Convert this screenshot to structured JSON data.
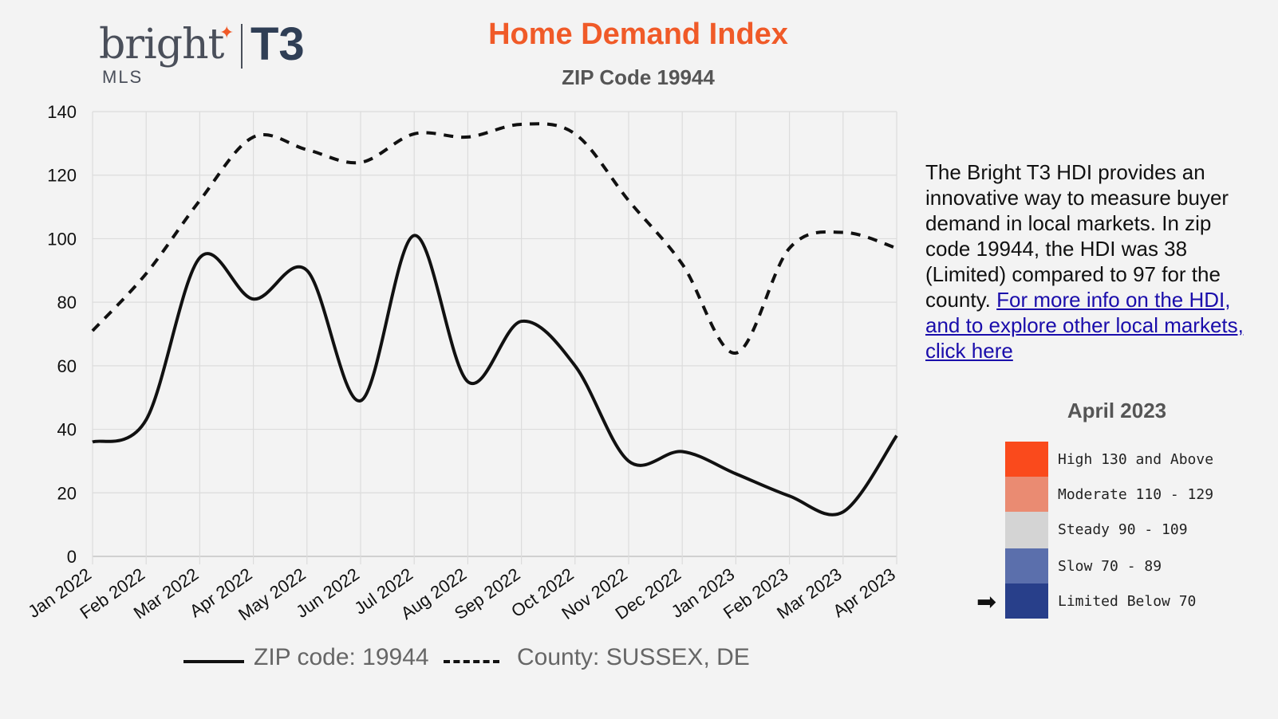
{
  "header": {
    "logo_text": "bright",
    "logo_mls": "MLS",
    "logo_t3": "T3",
    "title": "Home Demand Index",
    "subtitle": "ZIP Code 19944"
  },
  "description": {
    "text": "The Bright T3 HDI provides an innovative way to measure buyer demand in local markets. In zip code 19944, the HDI was 38 (Limited) compared to 97 for the county.",
    "link_text": "For more info on the HDI, and to explore other local markets, click here"
  },
  "demand_legend": {
    "title": "April 2023",
    "levels": [
      {
        "label": "High 130 and Above",
        "color": "#fa4a1c"
      },
      {
        "label": "Moderate 110 - 129",
        "color": "#ea8b72"
      },
      {
        "label": "Steady 90 - 109",
        "color": "#d4d4d4"
      },
      {
        "label": "Slow 70 - 89",
        "color": "#5b6fac"
      },
      {
        "label": "Limited Below 70",
        "color": "#283f8a"
      }
    ],
    "current_level": "Limited Below 70",
    "arrow_icon": "right-arrow-icon"
  },
  "chart_data": {
    "type": "line",
    "title": "Home Demand Index",
    "subtitle": "ZIP Code 19944",
    "categories": [
      "Jan 2022",
      "Feb 2022",
      "Mar 2022",
      "Apr 2022",
      "May 2022",
      "Jun 2022",
      "Jul 2022",
      "Aug 2022",
      "Sep 2022",
      "Oct 2022",
      "Nov 2022",
      "Dec 2022",
      "Jan 2023",
      "Feb 2023",
      "Mar 2023",
      "Apr 2023"
    ],
    "series": [
      {
        "name": "ZIP code: 19944",
        "style": "solid",
        "values": [
          36,
          43,
          94,
          81,
          90,
          49,
          101,
          55,
          74,
          60,
          30,
          33,
          26,
          19,
          14,
          38
        ]
      },
      {
        "name": "County: SUSSEX, DE",
        "style": "dashed",
        "values": [
          71,
          89,
          112,
          132,
          128,
          124,
          133,
          132,
          136,
          133,
          112,
          92,
          64,
          97,
          102,
          97
        ]
      }
    ],
    "yticks": [
      0,
      20,
      40,
      60,
      80,
      100,
      120,
      140
    ],
    "ylim": [
      0,
      140
    ],
    "grid": true,
    "legend_position": "bottom",
    "xlabel": "",
    "ylabel": ""
  }
}
